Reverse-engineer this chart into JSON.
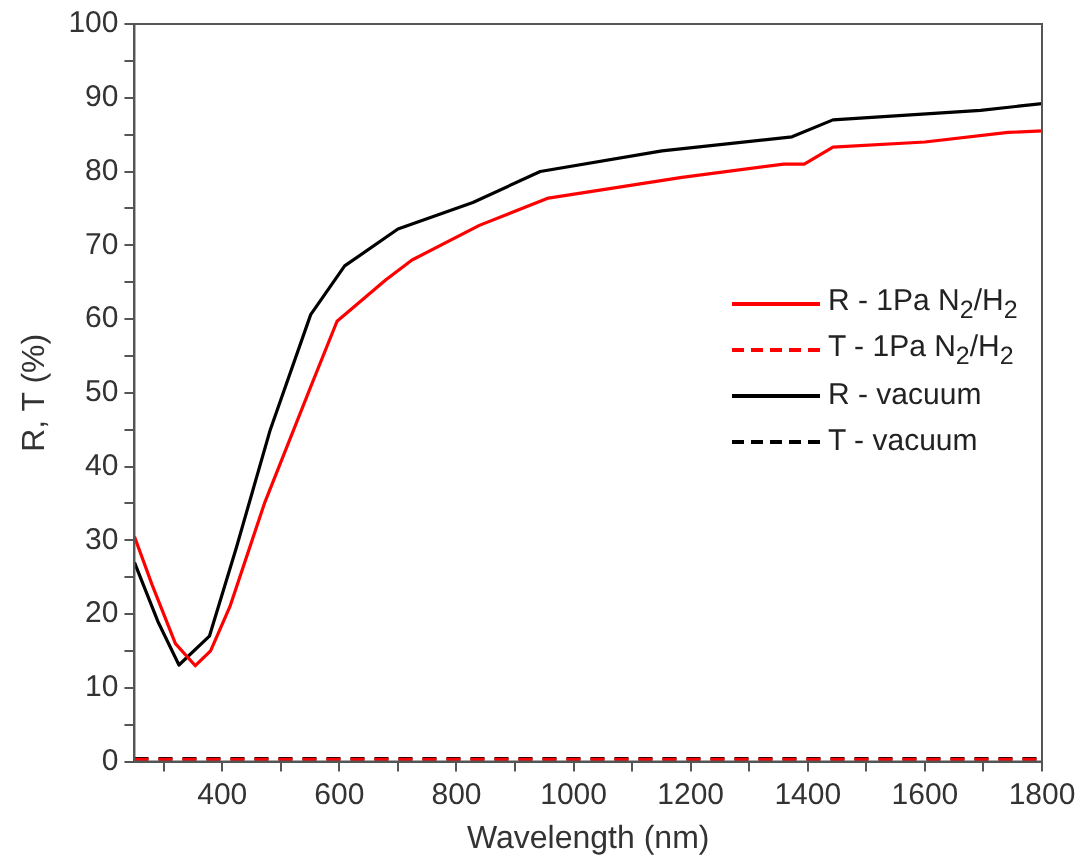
{
  "chart_data": {
    "type": "line",
    "xlabel": "Wavelength (nm)",
    "ylabel": "R, T (%)",
    "xlim": [
      250,
      1800
    ],
    "ylim": [
      0,
      100
    ],
    "xticks": [
      {
        "value": 300,
        "label": null
      },
      400,
      {
        "value": 500,
        "label": null
      },
      600,
      {
        "value": 700,
        "label": null
      },
      800,
      {
        "value": 900,
        "label": null
      },
      1000,
      {
        "value": 1100,
        "label": null
      },
      1200,
      {
        "value": 1300,
        "label": null
      },
      1400,
      {
        "value": 1500,
        "label": null
      },
      1600,
      {
        "value": 1700,
        "label": null
      },
      1800
    ],
    "yticks": [
      0,
      {
        "value": 5,
        "label": null
      },
      10,
      {
        "value": 15,
        "label": null
      },
      20,
      {
        "value": 25,
        "label": null
      },
      30,
      {
        "value": 35,
        "label": null
      },
      40,
      {
        "value": 45,
        "label": null
      },
      50,
      {
        "value": 55,
        "label": null
      },
      60,
      {
        "value": 65,
        "label": null
      },
      70,
      {
        "value": 75,
        "label": null
      },
      80,
      {
        "value": 85,
        "label": null
      },
      90,
      {
        "value": 95,
        "label": null
      },
      100
    ],
    "grid": false,
    "legend": "right",
    "marker": "none",
    "series": [
      {
        "name": "R - 1Pa N$_{2}$/H$_{2}$",
        "color": "#ff0000",
        "line_style": "solid",
        "x": [
          250,
          280,
          320,
          354,
          380,
          413,
          472,
          552,
          596,
          679,
          724,
          839,
          957,
          1185,
          1359,
          1394,
          1443,
          1600,
          1742,
          1800
        ],
        "values": [
          30.5,
          24,
          16,
          13,
          15,
          21,
          35,
          51,
          59.7,
          65.3,
          68,
          72.7,
          76.4,
          79.2,
          81,
          81,
          83.3,
          84,
          85.3,
          85.5
        ]
      },
      {
        "name": "T - 1Pa N$_{2}$/H$_{2}$",
        "color": "#ff0000",
        "line_style": "dashed",
        "x": [
          250,
          600,
          1000,
          1400,
          1800
        ],
        "values": [
          0.3,
          0.3,
          0.3,
          0.3,
          0.3
        ]
      },
      {
        "name": "R - vacuum",
        "color": "#000000",
        "line_style": "solid",
        "x": [
          250,
          290,
          326,
          378,
          424,
          482,
          551,
          609,
          700,
          828,
          943,
          1151,
          1373,
          1443,
          1695,
          1800
        ],
        "values": [
          27,
          19,
          13.1,
          17,
          29,
          45,
          60.6,
          67.2,
          72.2,
          75.8,
          80,
          82.8,
          84.7,
          87,
          88.3,
          89.2
        ]
      },
      {
        "name": "T - vacuum",
        "color": "#000000",
        "line_style": "dashed",
        "x": [
          250,
          600,
          1000,
          1400,
          1800
        ],
        "values": [
          0.4,
          0.4,
          0.4,
          0.4,
          0.4
        ]
      }
    ]
  }
}
